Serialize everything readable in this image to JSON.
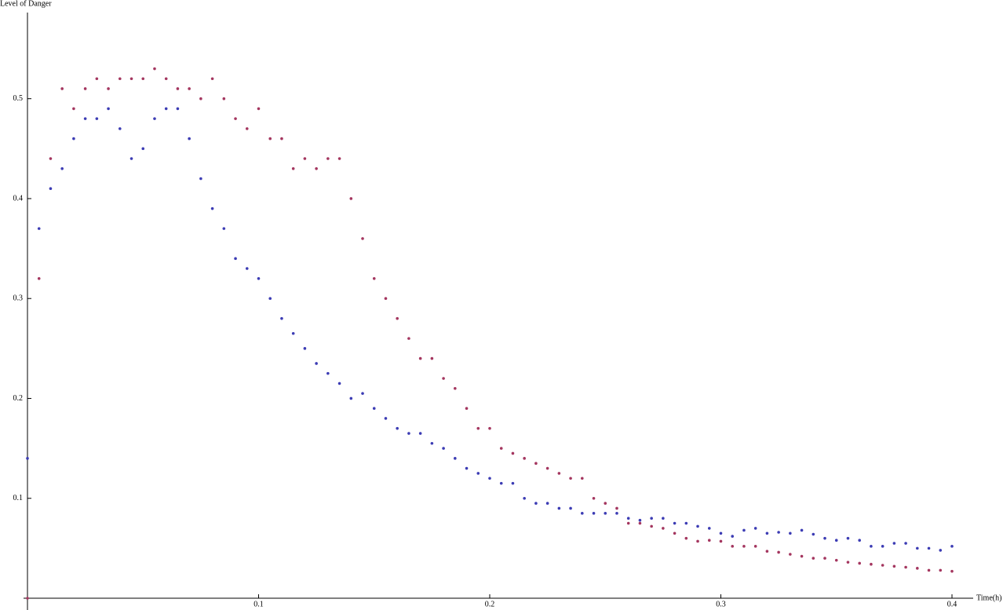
{
  "chart_data": {
    "type": "scatter",
    "y_label": "Level of Danger",
    "x_label": "Time(h)",
    "xlim": [
      0,
      0.409
    ],
    "ylim": [
      0,
      0.584
    ],
    "xticks": [
      0.1,
      0.2,
      0.3,
      0.4
    ],
    "yticks": [
      0.1,
      0.2,
      0.3,
      0.4,
      0.5
    ],
    "x": [
      0,
      0.005,
      0.01,
      0.015,
      0.02,
      0.025,
      0.03,
      0.035,
      0.04,
      0.045,
      0.05,
      0.055,
      0.06,
      0.065,
      0.07,
      0.075,
      0.08,
      0.085,
      0.09,
      0.095,
      0.1,
      0.105,
      0.11,
      0.115,
      0.12,
      0.125,
      0.13,
      0.135,
      0.14,
      0.145,
      0.15,
      0.155,
      0.16,
      0.165,
      0.17,
      0.175,
      0.18,
      0.185,
      0.19,
      0.195,
      0.2,
      0.205,
      0.21,
      0.215,
      0.22,
      0.225,
      0.23,
      0.235,
      0.24,
      0.245,
      0.25,
      0.255,
      0.26,
      0.265,
      0.27,
      0.275,
      0.28,
      0.285,
      0.29,
      0.295,
      0.3,
      0.305,
      0.31,
      0.315,
      0.32,
      0.325,
      0.33,
      0.335,
      0.34,
      0.345,
      0.35,
      0.355,
      0.36,
      0.365,
      0.37,
      0.375,
      0.38,
      0.385,
      0.39,
      0.395,
      0.4
    ],
    "series": [
      {
        "color": "#3c3cb4",
        "values": [
          0.14,
          0.37,
          0.41,
          0.43,
          0.46,
          0.48,
          0.48,
          0.49,
          0.47,
          0.44,
          0.45,
          0.48,
          0.49,
          0.49,
          0.46,
          0.42,
          0.39,
          0.37,
          0.34,
          0.33,
          0.32,
          0.3,
          0.28,
          0.265,
          0.25,
          0.235,
          0.225,
          0.215,
          0.2,
          0.205,
          0.19,
          0.18,
          0.17,
          0.165,
          0.165,
          0.155,
          0.15,
          0.14,
          0.13,
          0.125,
          0.12,
          0.115,
          0.115,
          0.1,
          0.095,
          0.095,
          0.09,
          0.09,
          0.085,
          0.085,
          0.085,
          0.085,
          0.08,
          0.078,
          0.08,
          0.08,
          0.075,
          0.075,
          0.072,
          0.07,
          0.065,
          0.062,
          0.068,
          0.07,
          0.065,
          0.066,
          0.065,
          0.068,
          0.064,
          0.06,
          0.058,
          0.06,
          0.058,
          0.052,
          0.052,
          0.055,
          0.055,
          0.05,
          0.05,
          0.048,
          0.052
        ]
      },
      {
        "color": "#a4365f",
        "values": [
          0,
          0.32,
          0.44,
          0.51,
          0.49,
          0.51,
          0.52,
          0.51,
          0.52,
          0.52,
          0.52,
          0.53,
          0.52,
          0.51,
          0.51,
          0.5,
          0.52,
          0.5,
          0.48,
          0.47,
          0.49,
          0.46,
          0.46,
          0.43,
          0.44,
          0.43,
          0.44,
          0.44,
          0.4,
          0.36,
          0.32,
          0.3,
          0.28,
          0.26,
          0.24,
          0.24,
          0.22,
          0.21,
          0.19,
          0.17,
          0.17,
          0.15,
          0.145,
          0.14,
          0.135,
          0.13,
          0.125,
          0.12,
          0.12,
          0.1,
          0.095,
          0.09,
          0.075,
          0.075,
          0.072,
          0.07,
          0.065,
          0.06,
          0.057,
          0.058,
          0.057,
          0.052,
          0.052,
          0.052,
          0.047,
          0.046,
          0.044,
          0.042,
          0.04,
          0.04,
          0.038,
          0.036,
          0.035,
          0.034,
          0.033,
          0.032,
          0.031,
          0.03,
          0.028,
          0.028,
          0.027
        ]
      }
    ]
  }
}
